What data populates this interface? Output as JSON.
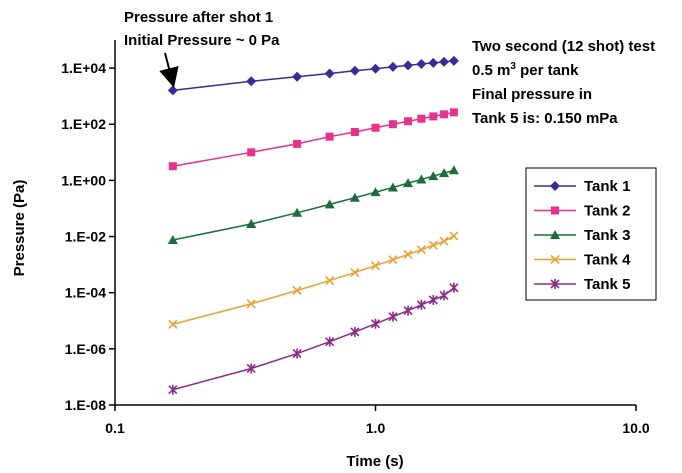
{
  "chart_data": {
    "type": "line",
    "xlabel": "Time (s)",
    "ylabel": "Pressure (Pa)",
    "xscale": "log",
    "yscale": "log",
    "xlim": [
      0.1,
      10.0
    ],
    "ylim": [
      1e-08,
      100000.0
    ],
    "grid": false,
    "legend_position": "right",
    "x_ticks": [
      "0.1",
      "1.0",
      "10.0"
    ],
    "y_ticks": [
      "1.E-08",
      "1.E-06",
      "1.E-04",
      "1.E-02",
      "1.E+00",
      "1.E+02",
      "1.E+04"
    ],
    "x": [
      0.1667,
      0.3333,
      0.5,
      0.6667,
      0.8333,
      1.0,
      1.1667,
      1.3333,
      1.5,
      1.6667,
      1.8333,
      2.0
    ],
    "series": [
      {
        "name": "Tank 1",
        "color": "#3b2a9b",
        "marker": "diamond",
        "values": [
          1600,
          3400,
          4900,
          6400,
          8000,
          9500,
          11000,
          12500,
          14000,
          15300,
          16700,
          18000
        ]
      },
      {
        "name": "Tank 2",
        "color": "#e8308c",
        "marker": "square",
        "values": [
          3.2,
          10,
          20,
          36,
          53,
          75,
          100,
          128,
          157,
          190,
          225,
          265
        ]
      },
      {
        "name": "Tank 3",
        "color": "#1a6e3a",
        "marker": "triangle",
        "values": [
          0.0075,
          0.028,
          0.07,
          0.14,
          0.24,
          0.38,
          0.56,
          0.8,
          1.08,
          1.42,
          1.82,
          2.3
        ]
      },
      {
        "name": "Tank 4",
        "color": "#f0a030",
        "marker": "x",
        "values": [
          7.5e-06,
          4e-05,
          0.00012,
          0.00027,
          0.00052,
          0.00092,
          0.0015,
          0.0023,
          0.0034,
          0.0049,
          0.0068,
          0.0105
        ]
      },
      {
        "name": "Tank 5",
        "color": "#8e2a8a",
        "marker": "star",
        "values": [
          3.5e-08,
          2e-07,
          6.8e-07,
          1.8e-06,
          4e-06,
          7.8e-06,
          1.4e-05,
          2.3e-05,
          3.7e-05,
          5.5e-05,
          8e-05,
          0.00015
        ]
      }
    ],
    "annotations": {
      "arrow_top": "Pressure after shot 1",
      "arrow_bottom": "Initial Pressure ~ 0 Pa",
      "info_line1": "Two second (12 shot) test",
      "info_line2_pre": "0.5 m",
      "info_line2_sup": "3",
      "info_line2_post": " per tank",
      "info_line3": "Final pressure in",
      "info_line4": "Tank 5 is: 0.150 mPa"
    }
  }
}
